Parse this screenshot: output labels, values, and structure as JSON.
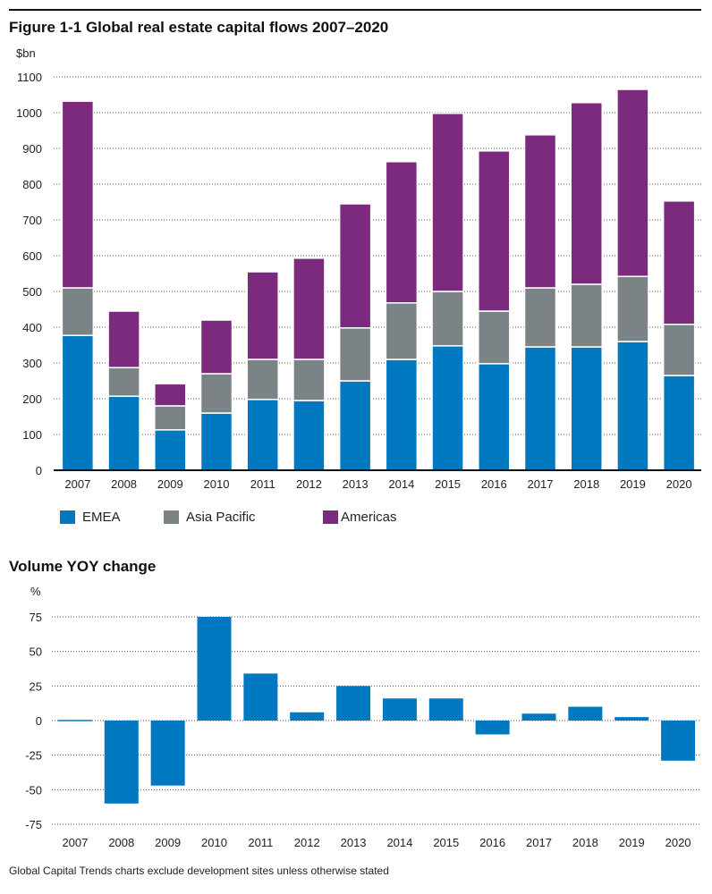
{
  "figure": {
    "title": "Figure 1-1 Global real estate capital flows 2007–2020",
    "footnote": "Global Capital Trends charts exclude development sites unless otherwise stated"
  },
  "chart_data": [
    {
      "type": "bar",
      "stacked": true,
      "title": "Figure 1-1 Global real estate capital flows 2007–2020",
      "xlabel": "",
      "ylabel": "$bn",
      "ylim": [
        0,
        1100
      ],
      "yticks": [
        "0",
        "100",
        "200",
        "300",
        "400",
        "500",
        "600",
        "700",
        "800",
        "900",
        "1000",
        "1100"
      ],
      "grid": true,
      "legend_position": "bottom",
      "categories": [
        "2007",
        "2008",
        "2009",
        "2010",
        "2011",
        "2012",
        "2013",
        "2014",
        "2015",
        "2016",
        "2017",
        "2018",
        "2019",
        "2020"
      ],
      "series": [
        {
          "name": "EMEA",
          "color": "#0079C1",
          "values": [
            377,
            207,
            113,
            160,
            198,
            195,
            250,
            310,
            348,
            298,
            345,
            345,
            360,
            265
          ]
        },
        {
          "name": "Asia Pacific",
          "color": "#7B8387",
          "values": [
            133,
            80,
            67,
            110,
            112,
            115,
            148,
            158,
            152,
            147,
            165,
            175,
            182,
            143
          ]
        },
        {
          "name": "Americas",
          "color": "#7B2A7E",
          "values": [
            522,
            158,
            62,
            150,
            245,
            283,
            347,
            395,
            498,
            448,
            428,
            508,
            523,
            345
          ]
        }
      ]
    },
    {
      "type": "bar",
      "title": "Volume YOY change",
      "xlabel": "",
      "ylabel": "%",
      "ylim": [
        -75,
        75
      ],
      "yticks": [
        "-75",
        "-50",
        "-25",
        "0",
        "25",
        "50",
        "75"
      ],
      "grid": true,
      "categories": [
        "2007",
        "2008",
        "2009",
        "2010",
        "2011",
        "2012",
        "2013",
        "2014",
        "2015",
        "2016",
        "2017",
        "2018",
        "2019",
        "2020"
      ],
      "series": [
        {
          "name": "Volume YOY change",
          "color": "#0079C1",
          "values": [
            0.5,
            -60,
            -47,
            75,
            34,
            6,
            25,
            16,
            16,
            -10,
            5,
            10,
            2.5,
            -29
          ]
        }
      ]
    }
  ]
}
